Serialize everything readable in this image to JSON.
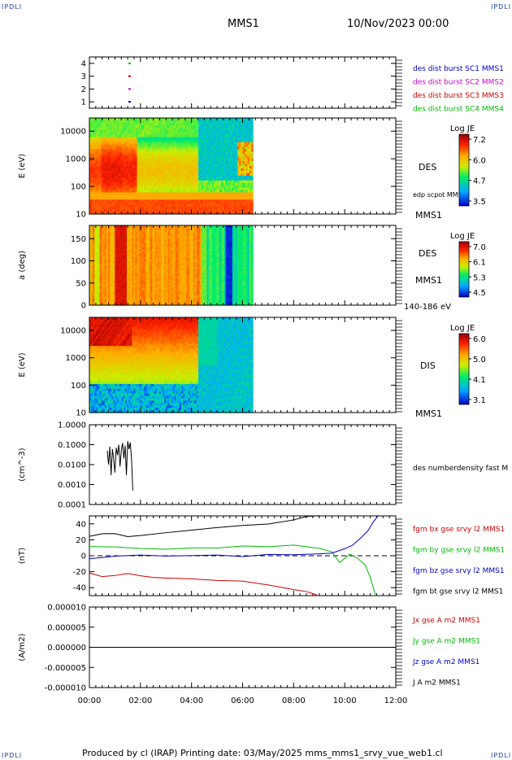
{
  "corner_label": "IPDLI",
  "header": {
    "spacecraft": "MMS1",
    "date": "10/Nov/2023 00:00"
  },
  "footer": "Produced by cl (IRAP)   Printing date: 03/May/2025   mms_mms1_srvy_vue_web1.cl",
  "colors": {
    "blue": "#0000cc",
    "magenta": "#cc00cc",
    "red": "#cc0000",
    "green": "#00bb00",
    "black": "#000000"
  },
  "x_axis": {
    "ticks": [
      "00:00",
      "02:00",
      "04:00",
      "06:00",
      "08:00",
      "10:00",
      "12:00"
    ],
    "range_hours": [
      0,
      12
    ]
  },
  "chart_data": [
    {
      "type": "scatter",
      "id": "burst",
      "ylim": [
        0.5,
        4.5
      ],
      "yticks": [
        "1",
        "2",
        "3",
        "4"
      ],
      "series": [
        {
          "name": "des dist burst SC1 MMS1",
          "color": "#0000cc",
          "level": 1,
          "x": [
            1.4
          ]
        },
        {
          "name": "des dist burst SC2 MMS2",
          "color": "#cc00cc",
          "level": 2,
          "x": [
            1.4
          ]
        },
        {
          "name": "des dist burst SC3 MMS3",
          "color": "#cc0000",
          "level": 3,
          "x": [
            1.4
          ]
        },
        {
          "name": "des dist burst SC4 MMS4",
          "color": "#00bb00",
          "level": 4,
          "x": [
            1.4
          ]
        }
      ]
    },
    {
      "type": "heatmap",
      "id": "des-energy",
      "ylabel": "E (eV)",
      "scale": "log",
      "yticks": [
        "10",
        "100",
        "1000",
        "10000"
      ],
      "right_labels": {
        "instrument": "DES",
        "overlay": "edp scpot MMS1",
        "sc": "MMS1"
      },
      "colorbar": {
        "title": "Log JE",
        "ticks": [
          "7.2",
          "6.0",
          "4.7",
          "3.5"
        ]
      }
    },
    {
      "type": "heatmap",
      "id": "des-pitch",
      "ylabel": "a (deg)",
      "yticks": [
        "0",
        "50",
        "100",
        "150"
      ],
      "right_labels": {
        "instrument": "DES",
        "sc": "MMS1",
        "band": "140-186 eV"
      },
      "colorbar": {
        "title": "Log JE",
        "ticks": [
          "7.0",
          "6.1",
          "5.3",
          "4.5"
        ]
      }
    },
    {
      "type": "heatmap",
      "id": "dis-energy",
      "ylabel": "E (eV)",
      "scale": "log",
      "yticks": [
        "10",
        "100",
        "1000",
        "10000"
      ],
      "right_labels": {
        "instrument": "DIS",
        "sc": "MMS1"
      },
      "colorbar": {
        "title": "Log JE",
        "ticks": [
          "6.0",
          "5.0",
          "4.1",
          "3.1"
        ]
      }
    },
    {
      "type": "line",
      "id": "density",
      "ylabel": "(cm^-3)",
      "scale": "log",
      "yticks": [
        "0.0001",
        "0.0010",
        "0.0100",
        "0.1000",
        "1.0000"
      ],
      "series": [
        {
          "name": "des numberdensity fast M",
          "color": "#000000",
          "x": [
            0.7,
            0.75,
            0.8,
            0.85,
            0.9,
            0.95,
            1.0,
            1.05,
            1.1,
            1.15,
            1.2,
            1.25,
            1.3,
            1.35,
            1.4,
            1.45,
            1.5,
            1.55,
            1.6,
            1.65,
            1.7
          ],
          "y": [
            0.05,
            0.01,
            0.08,
            0.003,
            0.06,
            0.02,
            0.004,
            0.07,
            0.03,
            0.1,
            0.008,
            0.05,
            0.12,
            0.02,
            0.09,
            0.003,
            0.15,
            0.06,
            0.13,
            0.02,
            0.0005
          ]
        }
      ]
    },
    {
      "type": "line",
      "id": "fgm",
      "ylabel": "(nT)",
      "ylim": [
        -50,
        50
      ],
      "yticks": [
        "-40",
        "-20",
        "0",
        "20",
        "40"
      ],
      "series": [
        {
          "name": "fgm bx gse srvy l2 MMS1",
          "color": "#cc0000",
          "x": [
            0,
            0.5,
            1,
            1.5,
            2,
            2.5,
            3,
            4,
            5,
            6,
            7,
            8,
            8.5,
            8.9
          ],
          "y": [
            -23,
            -27,
            -24,
            -22,
            -26,
            -27,
            -28,
            -30,
            -31,
            -33,
            -37,
            -42,
            -46,
            -50
          ]
        },
        {
          "name": "fgm by gse srvy l2 MMS1",
          "color": "#00bb00",
          "x": [
            0,
            1,
            2,
            3,
            4,
            5,
            6,
            7,
            8,
            9,
            9.5,
            9.8,
            10.2,
            10.5,
            10.8,
            11.0,
            11.2
          ],
          "y": [
            12,
            11,
            10,
            9,
            9,
            10,
            11,
            12,
            13,
            10,
            6,
            -8,
            2,
            -2,
            -12,
            -28,
            -48
          ]
        },
        {
          "name": "fgm bz gse srvy l2 MMS1",
          "color": "#0000cc",
          "x": [
            0,
            1,
            2,
            3,
            4,
            5,
            6,
            7,
            8,
            9,
            9.5,
            10,
            10.3,
            10.6,
            10.9,
            11.1,
            11.3
          ],
          "y": [
            -3,
            -1,
            0,
            -1,
            1,
            0,
            -1,
            2,
            1,
            3,
            4,
            8,
            14,
            22,
            32,
            42,
            50
          ]
        },
        {
          "name": "fgm bt gse srvy l2 MMS1",
          "color": "#000000",
          "x": [
            0,
            0.5,
            1,
            1.5,
            2,
            3,
            4,
            5,
            6,
            7,
            8,
            8.5,
            9
          ],
          "y": [
            25,
            27,
            28,
            24,
            26,
            30,
            33,
            36,
            38,
            41,
            45,
            48,
            50
          ]
        }
      ],
      "zero_line": true
    },
    {
      "type": "line",
      "id": "current",
      "ylabel": "(A/m2)",
      "ylim": [
        -1e-05,
        1e-05
      ],
      "yticks": [
        "0.000010",
        "0.000005",
        "0.000000",
        "-0.000005",
        "-0.000010"
      ],
      "series": [
        {
          "name": "Jx gse A m2 MMS1",
          "color": "#cc0000",
          "x": [
            0,
            12
          ],
          "y": [
            0,
            0
          ]
        },
        {
          "name": "Jy gse A m2 MMS1",
          "color": "#00bb00",
          "x": [
            0,
            12
          ],
          "y": [
            0,
            0
          ]
        },
        {
          "name": "Jz gse A m2 MMS1",
          "color": "#0000cc",
          "x": [
            0,
            12
          ],
          "y": [
            0,
            0
          ]
        },
        {
          "name": "J A m2 MMS1",
          "color": "#000000",
          "x": [
            0,
            12
          ],
          "y": [
            0,
            0
          ]
        }
      ]
    }
  ]
}
